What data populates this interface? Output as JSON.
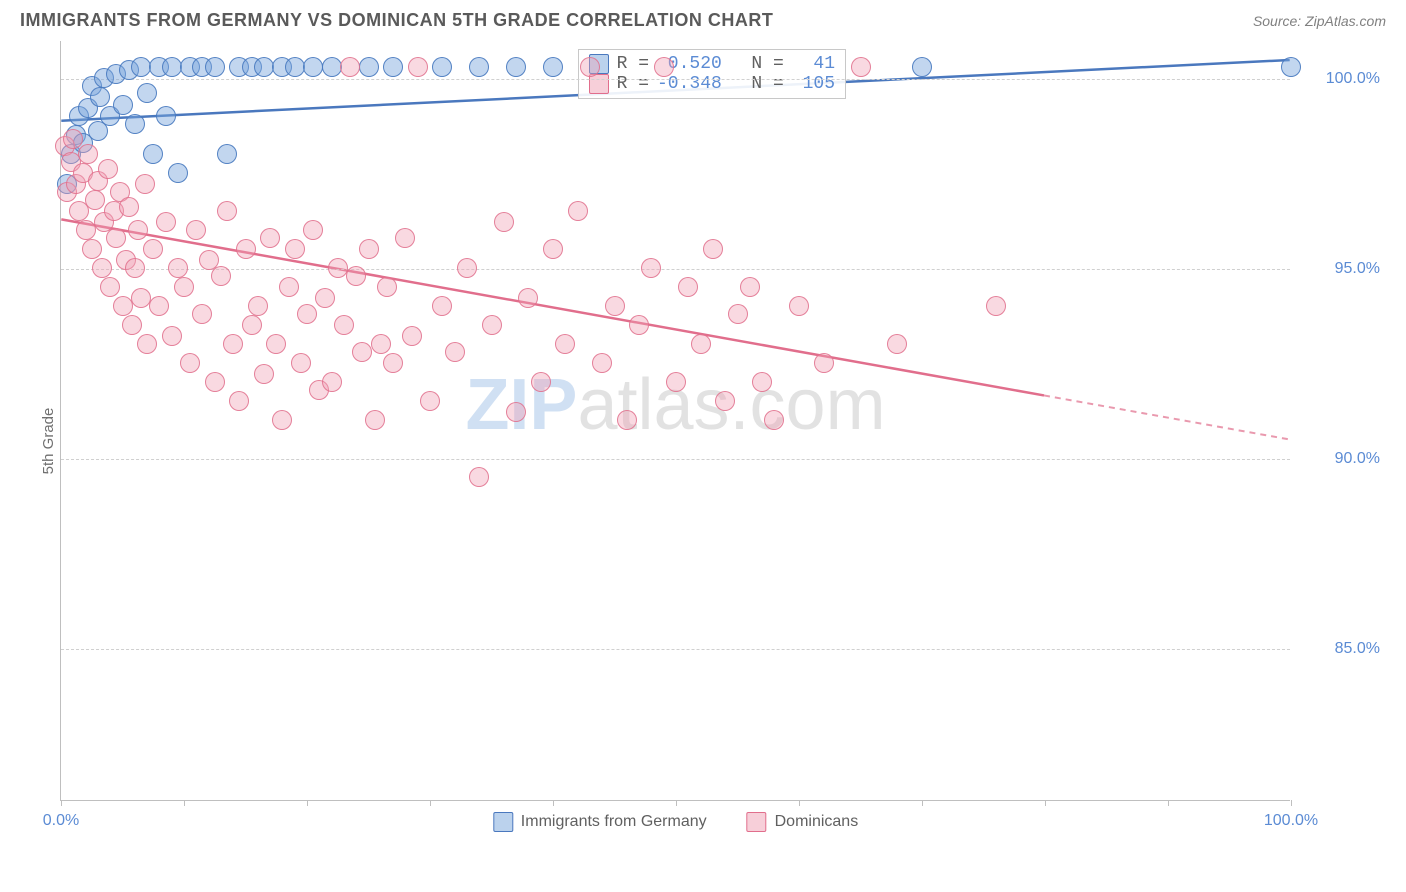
{
  "header": {
    "title": "IMMIGRANTS FROM GERMANY VS DOMINICAN 5TH GRADE CORRELATION CHART",
    "source": "Source: ZipAtlas.com"
  },
  "ylabel": "5th Grade",
  "watermark": {
    "bold": "ZIP",
    "rest": "atlas.com"
  },
  "chart": {
    "type": "scatter",
    "xlim": [
      0,
      100
    ],
    "ylim": [
      81,
      101
    ],
    "x_ticks": [
      0,
      10,
      20,
      30,
      40,
      50,
      60,
      70,
      80,
      90,
      100
    ],
    "x_tick_labels": {
      "0": "0.0%",
      "100": "100.0%"
    },
    "y_gridlines": [
      85,
      90,
      95,
      100
    ],
    "y_tick_labels": [
      "85.0%",
      "90.0%",
      "95.0%",
      "100.0%"
    ],
    "marker_size": 20,
    "grid_color": "#d0d0d0",
    "axis_color": "#bfbfbf",
    "background_color": "#ffffff",
    "tick_label_color": "#5b8bd4",
    "series": [
      {
        "name": "Immigrants from Germany",
        "key": "blue",
        "color_fill": "rgba(120,165,220,0.45)",
        "color_stroke": "#4a78be",
        "r_value": "0.520",
        "n_value": "41",
        "trend": {
          "x1": 0,
          "y1": 98.9,
          "x2": 100,
          "y2": 100.5,
          "solid_until_x": 42,
          "dash_after": false
        },
        "points": [
          [
            0.5,
            97.2
          ],
          [
            0.8,
            98.0
          ],
          [
            1.2,
            98.5
          ],
          [
            1.5,
            99.0
          ],
          [
            1.8,
            98.3
          ],
          [
            2.2,
            99.2
          ],
          [
            2.5,
            99.8
          ],
          [
            3.0,
            98.6
          ],
          [
            3.2,
            99.5
          ],
          [
            3.5,
            100.0
          ],
          [
            4.0,
            99.0
          ],
          [
            4.5,
            100.1
          ],
          [
            5.0,
            99.3
          ],
          [
            5.5,
            100.2
          ],
          [
            6.0,
            98.8
          ],
          [
            6.5,
            100.3
          ],
          [
            7.0,
            99.6
          ],
          [
            7.5,
            98.0
          ],
          [
            8.0,
            100.3
          ],
          [
            8.5,
            99.0
          ],
          [
            9.0,
            100.3
          ],
          [
            9.5,
            97.5
          ],
          [
            10.5,
            100.3
          ],
          [
            11.5,
            100.3
          ],
          [
            12.5,
            100.3
          ],
          [
            13.5,
            98.0
          ],
          [
            14.5,
            100.3
          ],
          [
            15.5,
            100.3
          ],
          [
            16.5,
            100.3
          ],
          [
            18.0,
            100.3
          ],
          [
            19.0,
            100.3
          ],
          [
            20.5,
            100.3
          ],
          [
            22.0,
            100.3
          ],
          [
            25.0,
            100.3
          ],
          [
            27.0,
            100.3
          ],
          [
            31.0,
            100.3
          ],
          [
            34.0,
            100.3
          ],
          [
            37.0,
            100.3
          ],
          [
            40.0,
            100.3
          ],
          [
            70.0,
            100.3
          ],
          [
            100.0,
            100.3
          ]
        ]
      },
      {
        "name": "Dominicans",
        "key": "pink",
        "color_fill": "rgba(240,160,180,0.4)",
        "color_stroke": "#e16e8c",
        "r_value": "-0.348",
        "n_value": "105",
        "trend": {
          "x1": 0,
          "y1": 96.3,
          "x2": 100,
          "y2": 90.5,
          "solid_until_x": 80,
          "dash_after": true
        },
        "points": [
          [
            0.3,
            98.2
          ],
          [
            0.5,
            97.0
          ],
          [
            0.8,
            97.8
          ],
          [
            1.0,
            98.4
          ],
          [
            1.2,
            97.2
          ],
          [
            1.5,
            96.5
          ],
          [
            1.8,
            97.5
          ],
          [
            2.0,
            96.0
          ],
          [
            2.2,
            98.0
          ],
          [
            2.5,
            95.5
          ],
          [
            2.8,
            96.8
          ],
          [
            3.0,
            97.3
          ],
          [
            3.3,
            95.0
          ],
          [
            3.5,
            96.2
          ],
          [
            3.8,
            97.6
          ],
          [
            4.0,
            94.5
          ],
          [
            4.3,
            96.5
          ],
          [
            4.5,
            95.8
          ],
          [
            4.8,
            97.0
          ],
          [
            5.0,
            94.0
          ],
          [
            5.3,
            95.2
          ],
          [
            5.5,
            96.6
          ],
          [
            5.8,
            93.5
          ],
          [
            6.0,
            95.0
          ],
          [
            6.3,
            96.0
          ],
          [
            6.5,
            94.2
          ],
          [
            6.8,
            97.2
          ],
          [
            7.0,
            93.0
          ],
          [
            7.5,
            95.5
          ],
          [
            8.0,
            94.0
          ],
          [
            8.5,
            96.2
          ],
          [
            9.0,
            93.2
          ],
          [
            9.5,
            95.0
          ],
          [
            10.0,
            94.5
          ],
          [
            10.5,
            92.5
          ],
          [
            11.0,
            96.0
          ],
          [
            11.5,
            93.8
          ],
          [
            12.0,
            95.2
          ],
          [
            12.5,
            92.0
          ],
          [
            13.0,
            94.8
          ],
          [
            13.5,
            96.5
          ],
          [
            14.0,
            93.0
          ],
          [
            14.5,
            91.5
          ],
          [
            15.0,
            95.5
          ],
          [
            15.5,
            93.5
          ],
          [
            16.0,
            94.0
          ],
          [
            16.5,
            92.2
          ],
          [
            17.0,
            95.8
          ],
          [
            17.5,
            93.0
          ],
          [
            18.0,
            91.0
          ],
          [
            18.5,
            94.5
          ],
          [
            19.0,
            95.5
          ],
          [
            19.5,
            92.5
          ],
          [
            20.0,
            93.8
          ],
          [
            20.5,
            96.0
          ],
          [
            21.0,
            91.8
          ],
          [
            21.5,
            94.2
          ],
          [
            22.0,
            92.0
          ],
          [
            22.5,
            95.0
          ],
          [
            23.0,
            93.5
          ],
          [
            23.5,
            100.3
          ],
          [
            24.0,
            94.8
          ],
          [
            24.5,
            92.8
          ],
          [
            25.0,
            95.5
          ],
          [
            25.5,
            91.0
          ],
          [
            26.0,
            93.0
          ],
          [
            26.5,
            94.5
          ],
          [
            27.0,
            92.5
          ],
          [
            28.0,
            95.8
          ],
          [
            28.5,
            93.2
          ],
          [
            29.0,
            100.3
          ],
          [
            30.0,
            91.5
          ],
          [
            31.0,
            94.0
          ],
          [
            32.0,
            92.8
          ],
          [
            33.0,
            95.0
          ],
          [
            34.0,
            89.5
          ],
          [
            35.0,
            93.5
          ],
          [
            36.0,
            96.2
          ],
          [
            37.0,
            91.2
          ],
          [
            38.0,
            94.2
          ],
          [
            39.0,
            92.0
          ],
          [
            40.0,
            95.5
          ],
          [
            41.0,
            93.0
          ],
          [
            42.0,
            96.5
          ],
          [
            43.0,
            100.3
          ],
          [
            44.0,
            92.5
          ],
          [
            45.0,
            94.0
          ],
          [
            46.0,
            91.0
          ],
          [
            47.0,
            93.5
          ],
          [
            48.0,
            95.0
          ],
          [
            49.0,
            100.3
          ],
          [
            50.0,
            92.0
          ],
          [
            51.0,
            94.5
          ],
          [
            52.0,
            93.0
          ],
          [
            53.0,
            95.5
          ],
          [
            54.0,
            91.5
          ],
          [
            55.0,
            93.8
          ],
          [
            56.0,
            94.5
          ],
          [
            57.0,
            92.0
          ],
          [
            58.0,
            91.0
          ],
          [
            60.0,
            94.0
          ],
          [
            62.0,
            92.5
          ],
          [
            65.0,
            100.3
          ],
          [
            68.0,
            93.0
          ],
          [
            76.0,
            94.0
          ]
        ]
      }
    ]
  },
  "legend_box": {
    "left_pct": 42,
    "top_pct": 1,
    "rows": [
      {
        "swatch": "blue",
        "r_label": "R =",
        "r": " 0.520",
        "n_label": "  N =",
        "n": "  41"
      },
      {
        "swatch": "pink",
        "r_label": "R =",
        "r": "-0.348",
        "n_label": "  N =",
        "n": " 105"
      }
    ]
  },
  "bottom_legend": [
    {
      "swatch": "blue",
      "label": "Immigrants from Germany"
    },
    {
      "swatch": "pink",
      "label": "Dominicans"
    }
  ]
}
